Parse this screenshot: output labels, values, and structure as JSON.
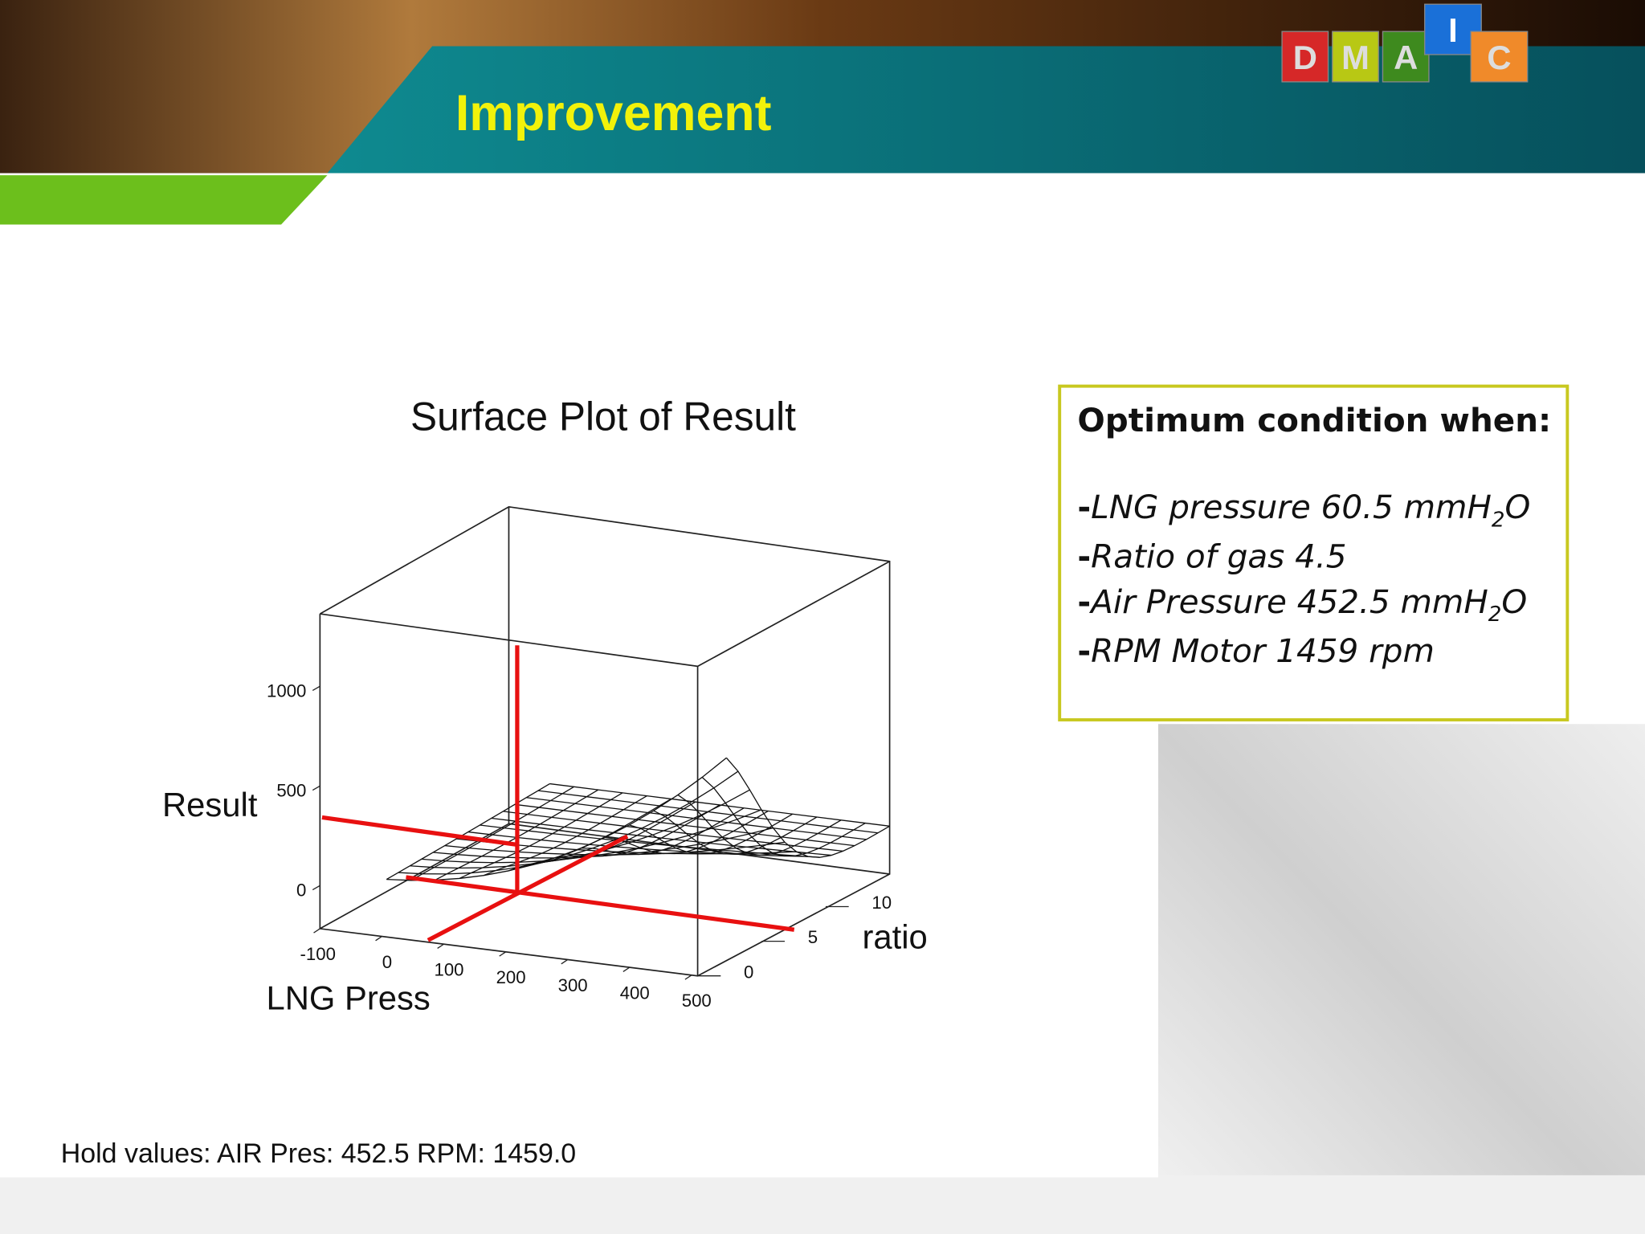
{
  "header": {
    "title": "Improvement",
    "logo": [
      "D",
      "M",
      "A",
      "I",
      "C"
    ]
  },
  "plot": {
    "title": "Surface Plot of Result",
    "z_label": "Result",
    "z_ticks": [
      "0",
      "500",
      "1000"
    ],
    "x_label": "LNG Press",
    "x_ticks": [
      "-100",
      "0",
      "100",
      "200",
      "300",
      "400",
      "500"
    ],
    "y_label": "ratio",
    "y_ticks": [
      "0",
      "5",
      "10"
    ]
  },
  "note": {
    "heading": "Optimum condition when:",
    "items": [
      {
        "lead": "-",
        "text": "LNG pressure 60.5 mmH",
        "sub": "2",
        "tail": "O"
      },
      {
        "lead": "-",
        "text": "Ratio of gas 4.5"
      },
      {
        "lead": "-",
        "text": "Air Pressure 452.5 mmH",
        "sub": "2",
        "tail": "O"
      },
      {
        "lead": "-",
        "text": "RPM Motor 1459 rpm"
      }
    ]
  },
  "hold": "Hold values:  AIR Pres: 452.5 RPM: 1459.0"
}
